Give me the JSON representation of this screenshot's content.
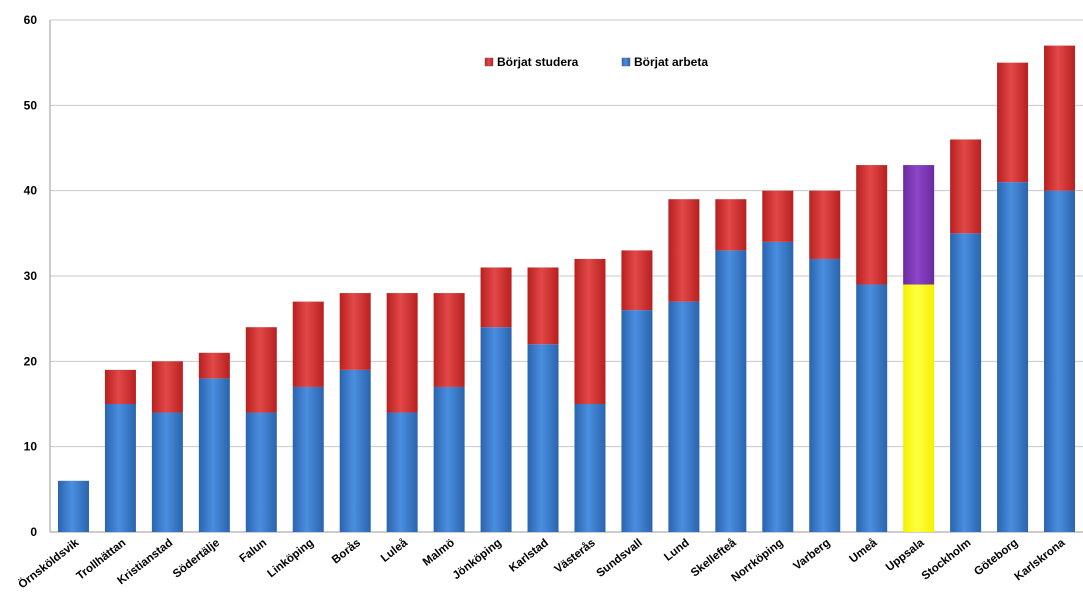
{
  "chart_data": {
    "type": "bar",
    "stacked": true,
    "categories": [
      "Örnsköldsvik",
      "Trollhättan",
      "Kristianstad",
      "Södertälje",
      "Falun",
      "Linköping",
      "Borås",
      "Luleå",
      "Malmö",
      "Jönköping",
      "Karlstad",
      "Västerås",
      "Sundsvall",
      "Lund",
      "Skellefteå",
      "Norrköping",
      "Varberg",
      "Umeå",
      "Uppsala",
      "Stockholm",
      "Göteborg",
      "Karlskrona"
    ],
    "series": [
      {
        "name": "Börjat arbeta",
        "color": "#2f72c4",
        "values": [
          6,
          15,
          14,
          18,
          14,
          17,
          19,
          14,
          17,
          24,
          22,
          15,
          26,
          27,
          33,
          34,
          32,
          29,
          29,
          35,
          41,
          40
        ]
      },
      {
        "name": "Börjat studera",
        "color": "#d42b2b",
        "values": [
          0,
          4,
          6,
          3,
          10,
          10,
          9,
          14,
          11,
          7,
          9,
          17,
          7,
          12,
          6,
          6,
          8,
          14,
          14,
          11,
          14,
          17
        ]
      }
    ],
    "highlight": {
      "category": "Uppsala",
      "colors": [
        "#ffff00",
        "#7b35b5"
      ]
    },
    "ylim": [
      0,
      60
    ],
    "yticks": [
      0,
      10,
      20,
      30,
      40,
      50,
      60
    ],
    "grid": true,
    "legend": {
      "position": "top-center",
      "order": [
        "Börjat studera",
        "Börjat arbeta"
      ]
    },
    "title": "",
    "xlabel": "",
    "ylabel": ""
  }
}
